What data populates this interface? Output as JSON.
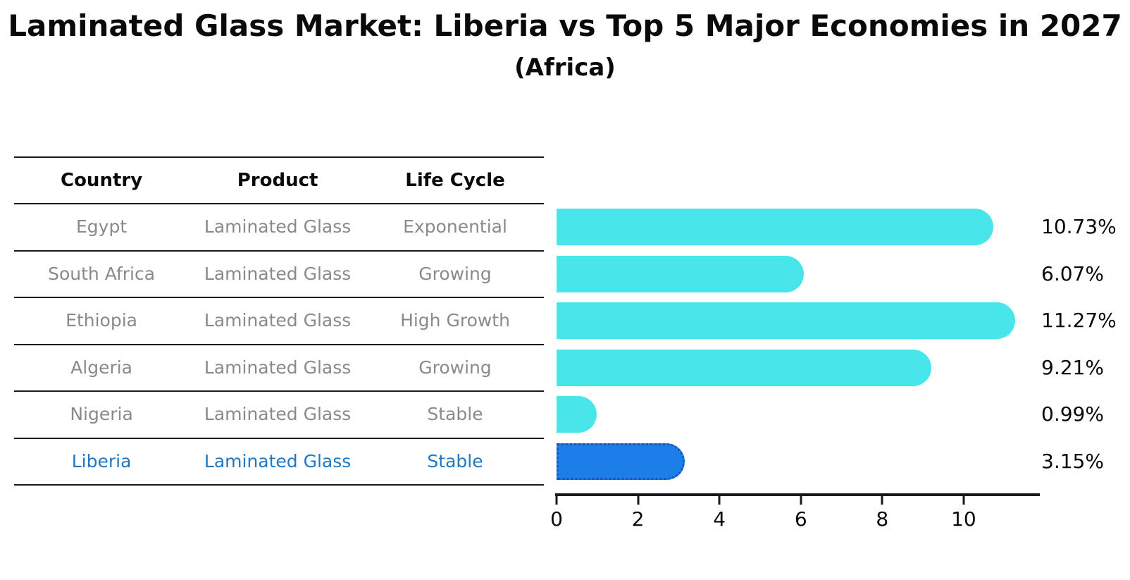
{
  "title": "Laminated Glass Market: Liberia vs Top 5 Major Economies in 2027",
  "subtitle": "(Africa)",
  "table": {
    "headers": [
      "Country",
      "Product",
      "Life Cycle"
    ],
    "rows": [
      {
        "country": "Egypt",
        "product": "Laminated Glass",
        "life_cycle": "Exponential",
        "highlighted": false
      },
      {
        "country": "South Africa",
        "product": "Laminated Glass",
        "life_cycle": "Growing",
        "highlighted": false
      },
      {
        "country": "Ethiopia",
        "product": "Laminated Glass",
        "life_cycle": "High Growth",
        "highlighted": false
      },
      {
        "country": "Algeria",
        "product": "Laminated Glass",
        "life_cycle": "Growing",
        "highlighted": false
      },
      {
        "country": "Nigeria",
        "product": "Laminated Glass",
        "life_cycle": "Stable",
        "highlighted": false
      },
      {
        "country": "Liberia",
        "product": "Laminated Glass",
        "life_cycle": "Stable",
        "highlighted": true
      }
    ]
  },
  "chart_data": {
    "type": "bar",
    "orientation": "horizontal",
    "title": "Laminated Glass Market: Liberia vs Top 5 Major Economies in 2027",
    "subtitle": "(Africa)",
    "categories": [
      "Egypt",
      "South Africa",
      "Ethiopia",
      "Algeria",
      "Nigeria",
      "Liberia"
    ],
    "values": [
      10.73,
      6.07,
      11.27,
      9.21,
      0.99,
      3.15
    ],
    "value_labels": [
      "10.73%",
      "6.07%",
      "11.27%",
      "9.21%",
      "0.99%",
      "3.15%"
    ],
    "xlabel": "",
    "ylabel": "",
    "xlim": [
      0,
      11.87
    ],
    "xticks": [
      0,
      2,
      4,
      6,
      8,
      10
    ],
    "grid": false,
    "legend": false,
    "highlight_index": 5,
    "bar_color": "#48e6ea",
    "highlight_bar_color": "#1d7ee9",
    "highlight_border_color": "#1358b8",
    "highlight_text_color": "#1f78c4"
  }
}
